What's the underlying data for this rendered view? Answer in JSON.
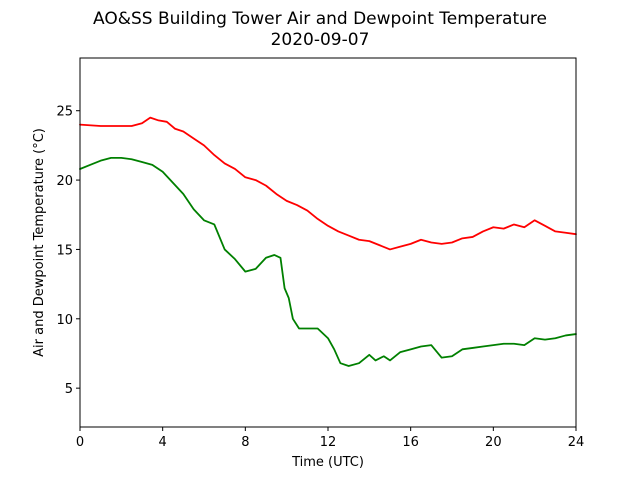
{
  "chart_data": {
    "type": "line",
    "title": "AO&SS Building Tower Air and Dewpoint Temperature",
    "subtitle": "2020-09-07",
    "xlabel": "Time (UTC)",
    "ylabel": "Air and Dewpoint Temperature (°C)",
    "xlim": [
      0,
      24
    ],
    "ylim": [
      2.2,
      28.8
    ],
    "xticks": [
      0,
      4,
      8,
      12,
      16,
      20,
      24
    ],
    "yticks": [
      5,
      10,
      15,
      20,
      25
    ],
    "grid": false,
    "series": [
      {
        "color": "#ff0000",
        "x": [
          0,
          1,
          2,
          2.5,
          3,
          3.4,
          3.8,
          4.2,
          4.6,
          5,
          5.5,
          6,
          6.5,
          7,
          7.5,
          8,
          8.5,
          9,
          9.5,
          10,
          10.5,
          11,
          11.5,
          12,
          12.5,
          13,
          13.5,
          14,
          14.5,
          15,
          15.5,
          16,
          16.5,
          17,
          17.5,
          18,
          18.5,
          19,
          19.5,
          20,
          20.5,
          21,
          21.5,
          22,
          22.5,
          23,
          23.5,
          24
        ],
        "y": [
          24.0,
          23.9,
          23.9,
          23.9,
          24.1,
          24.5,
          24.3,
          24.2,
          23.7,
          23.5,
          23.0,
          22.5,
          21.8,
          21.2,
          20.8,
          20.2,
          20.0,
          19.6,
          19.0,
          18.5,
          18.2,
          17.8,
          17.2,
          16.7,
          16.3,
          16.0,
          15.7,
          15.6,
          15.3,
          15.0,
          15.2,
          15.4,
          15.7,
          15.5,
          15.4,
          15.5,
          15.8,
          15.9,
          16.3,
          16.6,
          16.5,
          16.8,
          16.6,
          17.1,
          16.7,
          16.3,
          16.2,
          16.1
        ]
      },
      {
        "color": "#008000",
        "x": [
          0,
          0.5,
          1,
          1.5,
          2,
          2.5,
          3,
          3.5,
          4,
          4.5,
          5,
          5.5,
          6,
          6.5,
          7,
          7.5,
          8,
          8.5,
          9,
          9.4,
          9.7,
          9.9,
          10.1,
          10.3,
          10.6,
          11,
          11.5,
          12,
          12.3,
          12.6,
          13,
          13.5,
          14,
          14.3,
          14.7,
          15,
          15.5,
          16,
          16.5,
          17,
          17.5,
          18,
          18.5,
          19,
          19.5,
          20,
          20.5,
          21,
          21.5,
          22,
          22.5,
          23,
          23.5,
          24
        ],
        "y": [
          20.8,
          21.1,
          21.4,
          21.6,
          21.6,
          21.5,
          21.3,
          21.1,
          20.6,
          19.8,
          19.0,
          17.9,
          17.1,
          16.8,
          15.0,
          14.3,
          13.4,
          13.6,
          14.4,
          14.6,
          14.4,
          12.2,
          11.5,
          10.0,
          9.3,
          9.3,
          9.3,
          8.6,
          7.8,
          6.8,
          6.6,
          6.8,
          7.4,
          7.0,
          7.3,
          7.0,
          7.6,
          7.8,
          8.0,
          8.1,
          7.2,
          7.3,
          7.8,
          7.9,
          8.0,
          8.1,
          8.2,
          8.2,
          8.1,
          8.6,
          8.5,
          8.6,
          8.8,
          8.9
        ]
      }
    ]
  }
}
